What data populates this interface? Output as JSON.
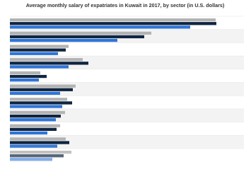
{
  "chart_data": {
    "type": "bar",
    "orientation": "horizontal",
    "title": "Average monthly salary of expatriates in Kuwait in 2017, by sector (in U.S. dollars)",
    "categories": [
      null,
      null,
      null,
      null,
      null,
      null,
      null,
      null,
      null,
      null,
      null
    ],
    "series": [
      {
        "color": "#b3b3b3",
        "values": [
          291,
          200,
          83,
          103,
          43,
          93,
          81,
          78,
          71,
          79,
          87
        ]
      },
      {
        "color": "#0f2541",
        "values": [
          292,
          190,
          79,
          111,
          52,
          89,
          88,
          72,
          66,
          84,
          76
        ]
      },
      {
        "color": "#2f74d8",
        "values": [
          255,
          152,
          68,
          83,
          41,
          71,
          74,
          65,
          53,
          67,
          60
        ]
      }
    ]
  }
}
